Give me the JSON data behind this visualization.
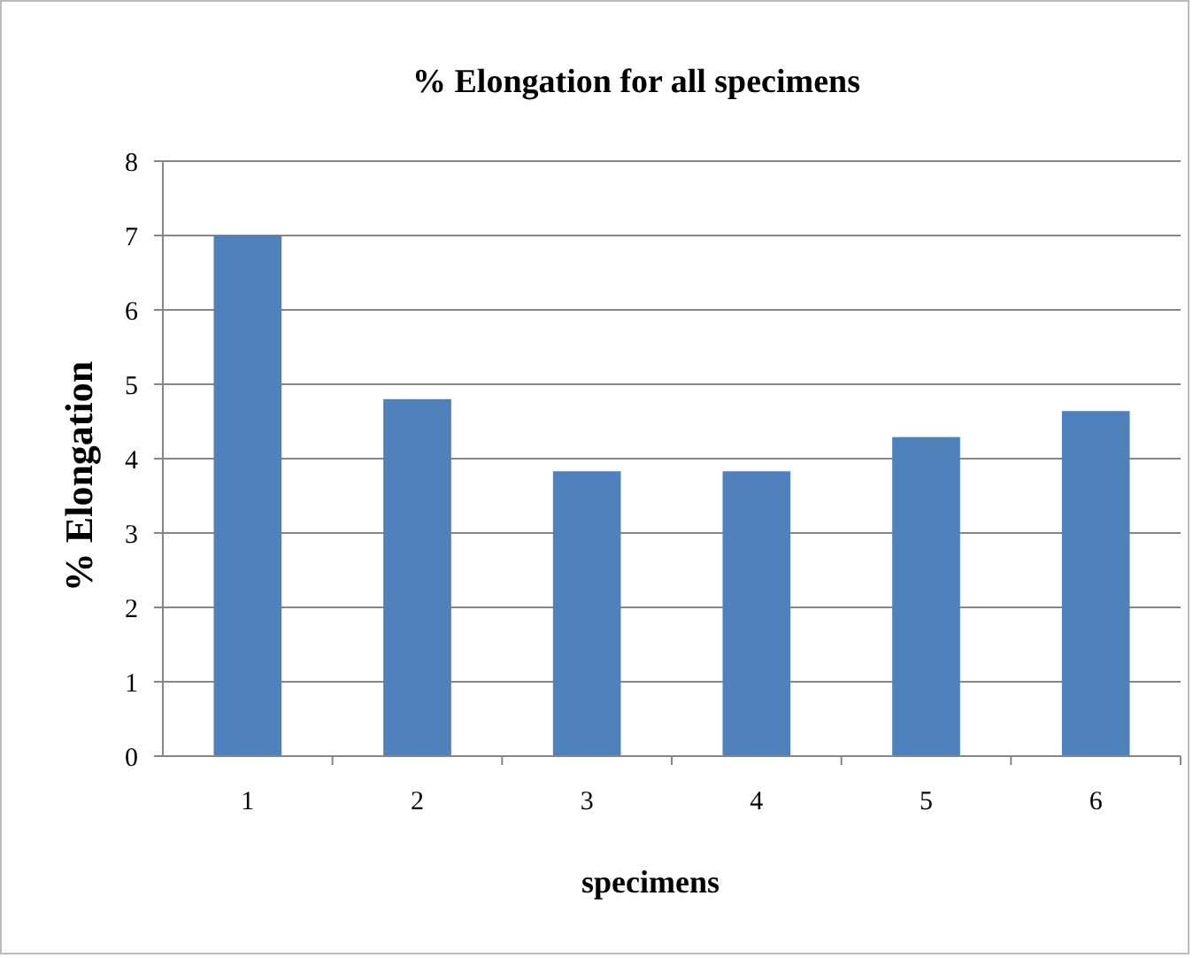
{
  "chart_data": {
    "type": "bar",
    "title": "% Elongation for all specimens",
    "xlabel": "specimens",
    "ylabel": "% Elongation",
    "categories": [
      "1",
      "2",
      "3",
      "4",
      "5",
      "6"
    ],
    "values": [
      7.0,
      4.8,
      3.83,
      3.83,
      4.29,
      4.64
    ],
    "color": "#4f81bd",
    "ylim": [
      0,
      8
    ],
    "yticks": [
      0,
      1,
      2,
      3,
      4,
      5,
      6,
      7,
      8
    ],
    "grid": "y"
  }
}
